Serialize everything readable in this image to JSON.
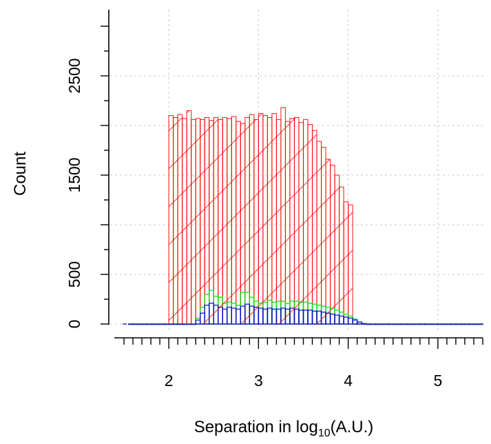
{
  "chart_data": {
    "type": "bar",
    "title": "",
    "xlabel": "Separation in log",
    "xlabel_sub": "10",
    "xlabel_unit": "(A.U.)",
    "ylabel": "Count",
    "xlim": [
      1.5,
      5.5
    ],
    "ylim": [
      -120,
      2980
    ],
    "grid": true,
    "x_ticks": [
      2,
      3,
      4,
      5
    ],
    "x_tick_labels": [
      "2",
      "3",
      "4",
      "5"
    ],
    "y_ticks": [
      0,
      500,
      1500,
      2500
    ],
    "y_tick_labels": [
      "0",
      "500",
      "1500",
      "2500"
    ],
    "bin_width": 0.05,
    "bin_starts": [
      1.55,
      1.6,
      1.65,
      1.7,
      1.75,
      1.8,
      1.85,
      1.9,
      1.95,
      2.0,
      2.05,
      2.1,
      2.15,
      2.2,
      2.25,
      2.3,
      2.35,
      2.4,
      2.45,
      2.5,
      2.55,
      2.6,
      2.65,
      2.7,
      2.75,
      2.8,
      2.85,
      2.9,
      2.95,
      3.0,
      3.05,
      3.1,
      3.15,
      3.2,
      3.25,
      3.3,
      3.35,
      3.4,
      3.45,
      3.5,
      3.55,
      3.6,
      3.65,
      3.7,
      3.75,
      3.8,
      3.85,
      3.9,
      3.95,
      4.0,
      4.05,
      4.1,
      4.15,
      4.2,
      4.25,
      4.3,
      4.35,
      4.4,
      4.45,
      4.5,
      4.55,
      4.6,
      4.65,
      4.7,
      4.75,
      4.8,
      4.85,
      4.9,
      4.95,
      5.0,
      5.05,
      5.1,
      5.15,
      5.2,
      5.25,
      5.3,
      5.35,
      5.4,
      5.45
    ],
    "series": [
      {
        "color": "#ff0000",
        "fill": "hatched",
        "values": [
          0,
          0,
          0,
          0,
          0,
          0,
          0,
          0,
          0,
          2100,
          2080,
          2110,
          2070,
          2150,
          2060,
          2070,
          2060,
          2080,
          2050,
          2080,
          2060,
          2080,
          2070,
          2090,
          2040,
          2020,
          2080,
          2110,
          2060,
          2120,
          2100,
          2080,
          2120,
          2060,
          2180,
          2040,
          2070,
          2080,
          2030,
          2060,
          2010,
          1950,
          1840,
          1780,
          1660,
          1600,
          1500,
          1380,
          1230,
          1200,
          0,
          0,
          0,
          0,
          0,
          0,
          0,
          0,
          0,
          0,
          0,
          0,
          0,
          0,
          0,
          0,
          0,
          0,
          0,
          0,
          0,
          0,
          0,
          0,
          0,
          0,
          0,
          0,
          0
        ]
      },
      {
        "color": "#00dd00",
        "fill": "hatched",
        "values": [
          0,
          0,
          0,
          0,
          0,
          0,
          0,
          0,
          0,
          0,
          0,
          0,
          0,
          0,
          0,
          60,
          170,
          300,
          340,
          280,
          270,
          210,
          220,
          210,
          190,
          320,
          320,
          270,
          230,
          210,
          220,
          240,
          220,
          230,
          230,
          210,
          230,
          230,
          220,
          220,
          210,
          200,
          190,
          180,
          170,
          160,
          140,
          120,
          100,
          80,
          50,
          20,
          5,
          0,
          0,
          0,
          0,
          0,
          0,
          0,
          0,
          0,
          0,
          0,
          0,
          0,
          0,
          0,
          0,
          0,
          0,
          0,
          0,
          0,
          0,
          0,
          0,
          0,
          0
        ]
      },
      {
        "color": "#0000cc",
        "fill": "hatched",
        "values": [
          0,
          0,
          0,
          0,
          0,
          0,
          0,
          0,
          0,
          0,
          0,
          0,
          0,
          0,
          0,
          40,
          110,
          190,
          210,
          190,
          170,
          150,
          170,
          160,
          150,
          180,
          200,
          180,
          170,
          160,
          150,
          160,
          150,
          150,
          160,
          150,
          160,
          150,
          140,
          140,
          140,
          130,
          130,
          120,
          110,
          100,
          90,
          80,
          70,
          60,
          40,
          20,
          5,
          0,
          0,
          0,
          0,
          0,
          0,
          0,
          0,
          0,
          0,
          0,
          0,
          0,
          0,
          0,
          0,
          0,
          0,
          0,
          0,
          0,
          0,
          0,
          0,
          0,
          0
        ]
      }
    ]
  }
}
